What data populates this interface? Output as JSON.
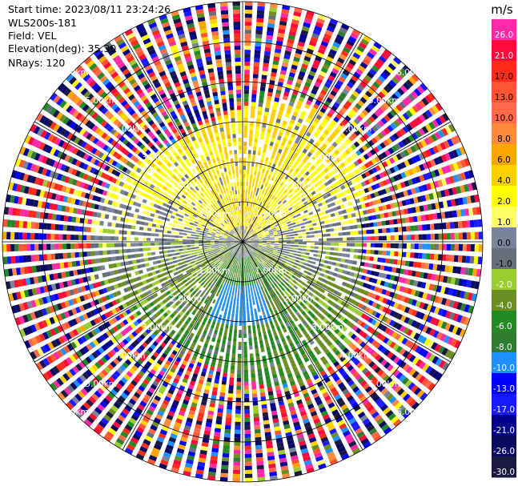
{
  "header": {
    "start_time": "Start time: 2023/08/11 23:24:26",
    "instrument": "WLS200s-181",
    "field": "Field: VEL",
    "elevation": "Elevation(deg): 35.30",
    "nrays": "NRays: 120"
  },
  "chart_data": {
    "type": "heatmap",
    "projection": "polar-ppi",
    "nrays": 120,
    "range_rings_km": [
      1,
      2,
      3,
      4,
      5,
      6
    ],
    "range_labels": [
      "1.00km",
      "2.00km",
      "3.00km",
      "4.00km",
      "5.00km",
      "6.00km"
    ],
    "colorbar": {
      "unit": "m/s",
      "bounds": [
        30.0,
        26.0,
        21.0,
        17.0,
        13.0,
        10.0,
        8.0,
        6.0,
        4.0,
        2.0,
        1.0,
        0.0,
        -1.0,
        -2.0,
        -4.0,
        -6.0,
        -8.0,
        -10.0,
        -13.0,
        -17.0,
        -21.0,
        -26.0,
        -30.0
      ],
      "tick_labels": [
        "26.0",
        "21.0",
        "17.0",
        "13.0",
        "10.0",
        "8.0",
        "6.0",
        "4.0",
        "2.0",
        "1.0",
        "0.0",
        "-1.0",
        "-2.0",
        "-4.0",
        "-6.0",
        "-8.0",
        "-10.0",
        "-13.0",
        "-17.0",
        "-21.0",
        "-26.0",
        "-30.0"
      ],
      "colors": [
        "#ff2aa8",
        "#ff0a3a",
        "#ff2c1a",
        "#ff5533",
        "#ff6a4a",
        "#ff8a3a",
        "#ffa500",
        "#ffd000",
        "#ffff00",
        "#ffff66",
        "#7a8499",
        "#66707a",
        "#9acd32",
        "#6b8e23",
        "#228b22",
        "#2e7d32",
        "#1e90ff",
        "#0000ff",
        "#1a1aff",
        "#00008b",
        "#0a0a60",
        "#1a1a40"
      ]
    },
    "field_summary": {
      "near_field_north": "yellow/orange (+1 to +8 m/s)",
      "near_field_south": "green (-2 to -6 m/s) with blue core (-8 to -10 m/s) around azimuth 180",
      "far_field": "noise, mixed colors beyond ~3.5 km"
    }
  }
}
